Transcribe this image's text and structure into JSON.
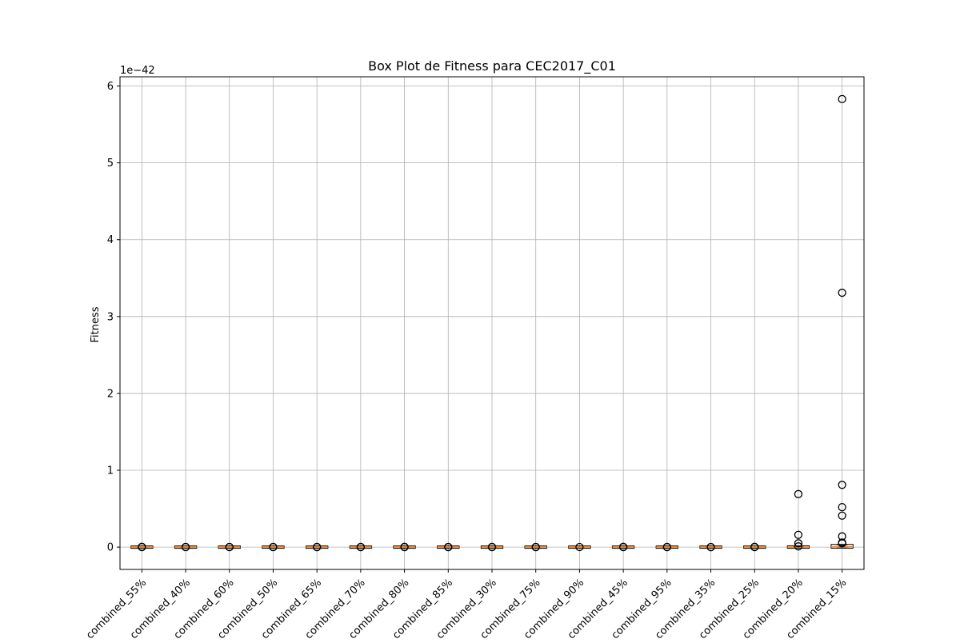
{
  "chart_data": {
    "type": "box",
    "title": "Box Plot de Fitness para CEC2017_C01",
    "xlabel": "",
    "ylabel": "Fitness",
    "scale_label": "1e−42",
    "ylim": [
      -0.29,
      6.12
    ],
    "yticks": [
      0,
      1,
      2,
      3,
      4,
      5,
      6
    ],
    "grid": true,
    "categories": [
      "combined_55%",
      "combined_40%",
      "combined_60%",
      "combined_50%",
      "combined_65%",
      "combined_70%",
      "combined_80%",
      "combined_85%",
      "combined_30%",
      "combined_75%",
      "combined_90%",
      "combined_45%",
      "combined_95%",
      "combined_35%",
      "combined_25%",
      "combined_20%",
      "combined_15%"
    ],
    "boxes": [
      {
        "median": 0,
        "q1": 0,
        "q3": 0,
        "whislo": 0,
        "whishi": 0,
        "fliers": [
          0,
          0.004
        ]
      },
      {
        "median": 0,
        "q1": 0,
        "q3": 0,
        "whislo": 0,
        "whishi": 0,
        "fliers": [
          0,
          0.003
        ]
      },
      {
        "median": 0,
        "q1": 0,
        "q3": 0,
        "whislo": 0,
        "whishi": 0,
        "fliers": [
          0,
          0.003
        ]
      },
      {
        "median": 0,
        "q1": 0,
        "q3": 0,
        "whislo": 0,
        "whishi": 0,
        "fliers": [
          0,
          0.003
        ]
      },
      {
        "median": 0,
        "q1": 0,
        "q3": 0,
        "whislo": 0,
        "whishi": 0,
        "fliers": [
          0,
          0.002
        ]
      },
      {
        "median": 0,
        "q1": 0,
        "q3": 0,
        "whislo": 0,
        "whishi": 0,
        "fliers": [
          0,
          0.002
        ]
      },
      {
        "median": 0,
        "q1": 0,
        "q3": 0,
        "whislo": 0,
        "whishi": 0,
        "fliers": [
          0,
          0.004
        ]
      },
      {
        "median": 0,
        "q1": 0,
        "q3": 0,
        "whislo": 0,
        "whishi": 0,
        "fliers": [
          0,
          0.002
        ]
      },
      {
        "median": 0,
        "q1": 0,
        "q3": 0,
        "whislo": 0,
        "whishi": 0,
        "fliers": [
          0,
          0.003
        ]
      },
      {
        "median": 0,
        "q1": 0,
        "q3": 0,
        "whislo": 0,
        "whishi": 0,
        "fliers": [
          0,
          0.002
        ]
      },
      {
        "median": 0,
        "q1": 0,
        "q3": 0,
        "whislo": 0,
        "whishi": 0,
        "fliers": [
          0.001
        ]
      },
      {
        "median": 0,
        "q1": 0,
        "q3": 0,
        "whislo": 0,
        "whishi": 0,
        "fliers": [
          0,
          0.004
        ]
      },
      {
        "median": 0,
        "q1": 0,
        "q3": 0,
        "whislo": 0,
        "whishi": 0,
        "fliers": [
          0,
          0.002
        ]
      },
      {
        "median": 0,
        "q1": 0,
        "q3": 0,
        "whislo": 0,
        "whishi": 0,
        "fliers": [
          0,
          0.001
        ]
      },
      {
        "median": 0,
        "q1": 0,
        "q3": 0,
        "whislo": 0,
        "whishi": 0,
        "fliers": [
          0,
          0.004
        ]
      },
      {
        "median": 0,
        "q1": 0,
        "q3": 0.002,
        "whislo": 0,
        "whishi": 0.004,
        "fliers": [
          0.69,
          0.16,
          0.05,
          0.01
        ]
      },
      {
        "median": 0.005,
        "q1": 0.002,
        "q3": 0.02,
        "whislo": 0,
        "whishi": 0.03,
        "fliers": [
          5.83,
          3.31,
          0.81,
          0.52,
          0.41,
          0.14,
          0.06,
          0.05
        ]
      }
    ],
    "colors": {
      "median": "#ff7f0e",
      "box": "#000000",
      "flier": "#000000",
      "grid": "#b0b0b0",
      "axes": "#000000"
    }
  }
}
